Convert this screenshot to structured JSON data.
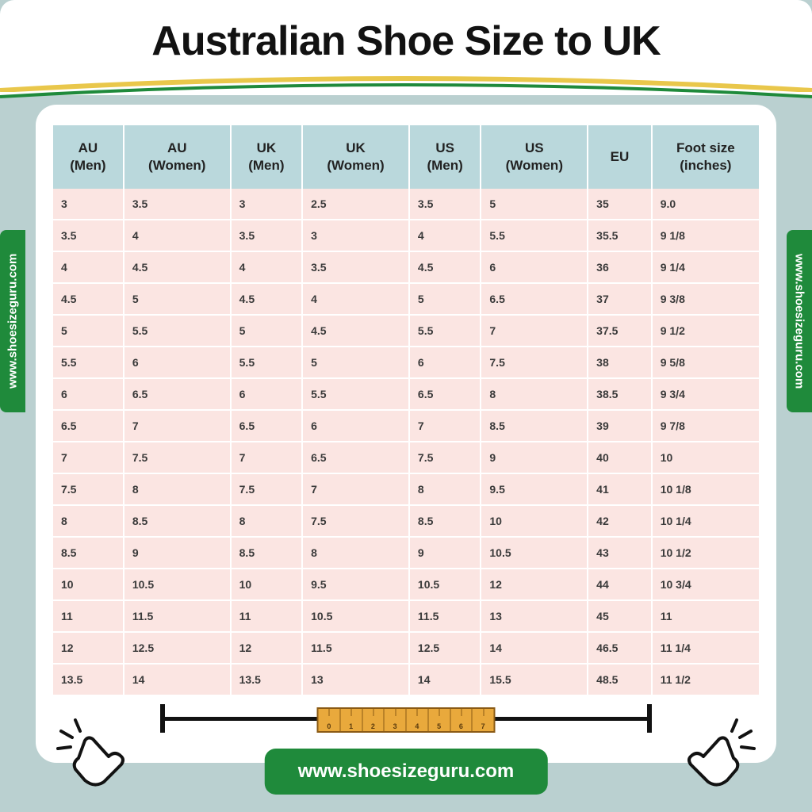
{
  "title": "Australian Shoe Size to UK",
  "website": "www.shoesizeguru.com",
  "colors": {
    "page_bg": "#bad0d0",
    "card_bg": "#ffffff",
    "header_bg": "#bad8dc",
    "cell_bg": "#fbe5e2",
    "accent_green": "#1f8a3b",
    "accent_yellow": "#e9c74b",
    "ruler_orange": "#e9a93c",
    "text_dark": "#121212"
  },
  "table": {
    "columns": [
      "AU\n(Men)",
      "AU\n(Women)",
      "UK\n(Men)",
      "UK\n(Women)",
      "US\n(Men)",
      "US\n(Women)",
      "EU",
      "Foot size\n(inches)"
    ],
    "rows": [
      [
        "3",
        "3.5",
        "3",
        "2.5",
        "3.5",
        "5",
        "35",
        "9.0"
      ],
      [
        "3.5",
        "4",
        "3.5",
        "3",
        "4",
        "5.5",
        "35.5",
        "9 1/8"
      ],
      [
        "4",
        "4.5",
        "4",
        "3.5",
        "4.5",
        "6",
        "36",
        "9 1/4"
      ],
      [
        "4.5",
        "5",
        "4.5",
        "4",
        "5",
        "6.5",
        "37",
        "9 3/8"
      ],
      [
        "5",
        "5.5",
        "5",
        "4.5",
        "5.5",
        "7",
        "37.5",
        "9 1/2"
      ],
      [
        "5.5",
        "6",
        "5.5",
        "5",
        "6",
        "7.5",
        "38",
        "9 5/8"
      ],
      [
        "6",
        "6.5",
        "6",
        "5.5",
        "6.5",
        "8",
        "38.5",
        "9 3/4"
      ],
      [
        "6.5",
        "7",
        "6.5",
        "6",
        "7",
        "8.5",
        "39",
        "9 7/8"
      ],
      [
        "7",
        "7.5",
        "7",
        "6.5",
        "7.5",
        "9",
        "40",
        "10"
      ],
      [
        "7.5",
        "8",
        "7.5",
        "7",
        "8",
        "9.5",
        "41",
        "10 1/8"
      ],
      [
        "8",
        "8.5",
        "8",
        "7.5",
        "8.5",
        "10",
        "42",
        "10 1/4"
      ],
      [
        "8.5",
        "9",
        "8.5",
        "8",
        "9",
        "10.5",
        "43",
        "10 1/2"
      ],
      [
        "10",
        "10.5",
        "10",
        "9.5",
        "10.5",
        "12",
        "44",
        "10 3/4"
      ],
      [
        "11",
        "11.5",
        "11",
        "10.5",
        "11.5",
        "13",
        "45",
        "11"
      ],
      [
        "12",
        "12.5",
        "12",
        "11.5",
        "12.5",
        "14",
        "46.5",
        "11 1/4"
      ],
      [
        "13.5",
        "14",
        "13.5",
        "13",
        "14",
        "15.5",
        "48.5",
        "11 1/2"
      ]
    ]
  },
  "ruler_marks": [
    "0",
    "1",
    "2",
    "3",
    "4",
    "5",
    "6",
    "7"
  ]
}
